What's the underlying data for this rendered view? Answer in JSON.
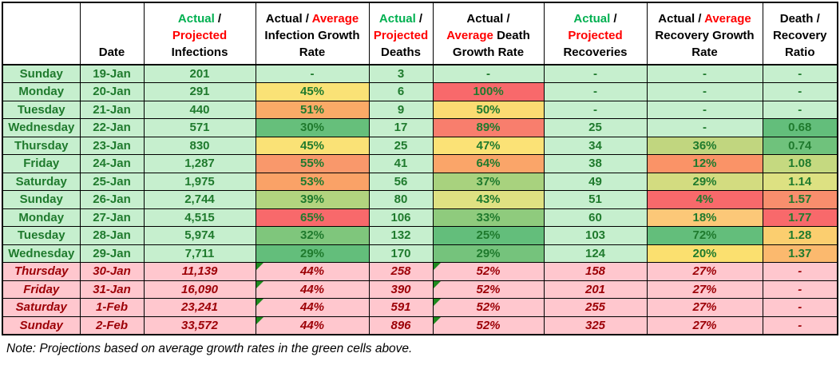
{
  "table": {
    "header_colors": {
      "green": "#00B050",
      "red": "#FF0000",
      "black": "#000000"
    },
    "palette": {
      "actual_row_bg": "#C6EFCE",
      "actual_row_text": "#1F7A2D",
      "projected_row_bg": "#FFC7CE",
      "projected_row_text": "#9C0006",
      "scale_red": "#F8696B",
      "scale_yellow": "#FFEB84",
      "scale_green": "#63BE7B",
      "formula_flag_green": "#1E8A1E"
    },
    "headers": [
      {
        "name": "day",
        "lines": []
      },
      {
        "name": "date",
        "lines": [
          [
            {
              "t": "Date",
              "c": "black"
            }
          ]
        ]
      },
      {
        "name": "infections",
        "lines": [
          [
            {
              "t": "Actual",
              "c": "green"
            },
            {
              "t": " /",
              "c": "black"
            }
          ],
          [
            {
              "t": "Projected",
              "c": "red"
            }
          ],
          [
            {
              "t": "Infections",
              "c": "black"
            }
          ]
        ]
      },
      {
        "name": "infection-growth-rate",
        "lines": [
          [
            {
              "t": "Actual / ",
              "c": "black"
            },
            {
              "t": "Average",
              "c": "red"
            }
          ],
          [
            {
              "t": "Infection Growth",
              "c": "black"
            }
          ],
          [
            {
              "t": "Rate",
              "c": "black"
            }
          ]
        ]
      },
      {
        "name": "deaths",
        "lines": [
          [
            {
              "t": "Actual",
              "c": "green"
            },
            {
              "t": " /",
              "c": "black"
            }
          ],
          [
            {
              "t": "Projected",
              "c": "red"
            }
          ],
          [
            {
              "t": "Deaths",
              "c": "black"
            }
          ]
        ]
      },
      {
        "name": "death-growth-rate",
        "lines": [
          [
            {
              "t": "Actual /",
              "c": "black"
            }
          ],
          [
            {
              "t": "Average",
              "c": "red"
            },
            {
              "t": " Death",
              "c": "black"
            }
          ],
          [
            {
              "t": "Growth Rate",
              "c": "black"
            }
          ]
        ]
      },
      {
        "name": "recoveries",
        "lines": [
          [
            {
              "t": "Actual",
              "c": "green"
            },
            {
              "t": " /",
              "c": "black"
            }
          ],
          [
            {
              "t": "Projected",
              "c": "red"
            }
          ],
          [
            {
              "t": "Recoveries",
              "c": "black"
            }
          ]
        ]
      },
      {
        "name": "recovery-growth-rate",
        "lines": [
          [
            {
              "t": "Actual / ",
              "c": "black"
            },
            {
              "t": "Average",
              "c": "red"
            }
          ],
          [
            {
              "t": "Recovery Growth",
              "c": "black"
            }
          ],
          [
            {
              "t": "Rate",
              "c": "black"
            }
          ]
        ]
      },
      {
        "name": "death-recovery-ratio",
        "lines": [
          [
            {
              "t": "Death /",
              "c": "black"
            }
          ],
          [
            {
              "t": "Recovery",
              "c": "black"
            }
          ],
          [
            {
              "t": "Ratio",
              "c": "black"
            }
          ]
        ]
      }
    ],
    "rows": [
      {
        "style": "actual",
        "cells": [
          {
            "v": "Sunday"
          },
          {
            "v": "19-Jan"
          },
          {
            "v": "201"
          },
          {
            "v": "-"
          },
          {
            "v": "3"
          },
          {
            "v": "-"
          },
          {
            "v": "-"
          },
          {
            "v": "-"
          },
          {
            "v": "-"
          }
        ]
      },
      {
        "style": "actual",
        "cells": [
          {
            "v": "Monday"
          },
          {
            "v": "20-Jan"
          },
          {
            "v": "291"
          },
          {
            "v": "45%",
            "bg": "#FAE276"
          },
          {
            "v": "6"
          },
          {
            "v": "100%",
            "bg": "#F8696B"
          },
          {
            "v": "-"
          },
          {
            "v": "-"
          },
          {
            "v": "-"
          }
        ]
      },
      {
        "style": "actual",
        "cells": [
          {
            "v": "Tuesday"
          },
          {
            "v": "21-Jan"
          },
          {
            "v": "440"
          },
          {
            "v": "51%",
            "bg": "#FAAA67"
          },
          {
            "v": "9"
          },
          {
            "v": "50%",
            "bg": "#FBDB72"
          },
          {
            "v": "-"
          },
          {
            "v": "-"
          },
          {
            "v": "-"
          }
        ]
      },
      {
        "style": "actual",
        "cells": [
          {
            "v": "Wednesday"
          },
          {
            "v": "22-Jan"
          },
          {
            "v": "571"
          },
          {
            "v": "30%",
            "bg": "#66BF7B"
          },
          {
            "v": "17"
          },
          {
            "v": "89%",
            "bg": "#F87E6D"
          },
          {
            "v": "25"
          },
          {
            "v": "-"
          },
          {
            "v": "0.68",
            "bg": "#63BE7B"
          }
        ]
      },
      {
        "style": "actual",
        "cells": [
          {
            "v": "Thursday"
          },
          {
            "v": "23-Jan"
          },
          {
            "v": "830"
          },
          {
            "v": "45%",
            "bg": "#FAE276"
          },
          {
            "v": "25"
          },
          {
            "v": "47%",
            "bg": "#FBE276"
          },
          {
            "v": "34"
          },
          {
            "v": "36%",
            "bg": "#C1D67F"
          },
          {
            "v": "0.74",
            "bg": "#6FC27C"
          }
        ]
      },
      {
        "style": "actual",
        "cells": [
          {
            "v": "Friday"
          },
          {
            "v": "24-Jan"
          },
          {
            "v": "1,287"
          },
          {
            "v": "55%",
            "bg": "#F9986B"
          },
          {
            "v": "41"
          },
          {
            "v": "64%",
            "bg": "#FAA569"
          },
          {
            "v": "38"
          },
          {
            "v": "12%",
            "bg": "#FA9367"
          },
          {
            "v": "1.08",
            "bg": "#C5D980"
          }
        ]
      },
      {
        "style": "actual",
        "cells": [
          {
            "v": "Saturday"
          },
          {
            "v": "25-Jan"
          },
          {
            "v": "1,975"
          },
          {
            "v": "53%",
            "bg": "#FAA267"
          },
          {
            "v": "56"
          },
          {
            "v": "37%",
            "bg": "#A8D27E"
          },
          {
            "v": "49"
          },
          {
            "v": "29%",
            "bg": "#D3DC80"
          },
          {
            "v": "1.14",
            "bg": "#DDE182"
          }
        ]
      },
      {
        "style": "actual",
        "cells": [
          {
            "v": "Sunday"
          },
          {
            "v": "26-Jan"
          },
          {
            "v": "2,744"
          },
          {
            "v": "39%",
            "bg": "#B2D47F"
          },
          {
            "v": "80"
          },
          {
            "v": "43%",
            "bg": "#DFE182"
          },
          {
            "v": "51"
          },
          {
            "v": "4%",
            "bg": "#F8696B"
          },
          {
            "v": "1.57",
            "bg": "#F88E6D"
          }
        ]
      },
      {
        "style": "actual",
        "cells": [
          {
            "v": "Monday"
          },
          {
            "v": "27-Jan"
          },
          {
            "v": "4,515"
          },
          {
            "v": "65%",
            "bg": "#F8696B"
          },
          {
            "v": "106"
          },
          {
            "v": "33%",
            "bg": "#8FCB7D"
          },
          {
            "v": "60"
          },
          {
            "v": "18%",
            "bg": "#FCC878"
          },
          {
            "v": "1.77",
            "bg": "#F8696B"
          }
        ]
      },
      {
        "style": "actual",
        "cells": [
          {
            "v": "Tuesday"
          },
          {
            "v": "28-Jan"
          },
          {
            "v": "5,974"
          },
          {
            "v": "32%",
            "bg": "#7FC67C"
          },
          {
            "v": "132"
          },
          {
            "v": "25%",
            "bg": "#63BE7B"
          },
          {
            "v": "103"
          },
          {
            "v": "72%",
            "bg": "#63BE7B"
          },
          {
            "v": "1.28",
            "bg": "#FBCE6F"
          }
        ]
      },
      {
        "style": "actual",
        "cells": [
          {
            "v": "Wednesday"
          },
          {
            "v": "29-Jan"
          },
          {
            "v": "7,711"
          },
          {
            "v": "29%",
            "bg": "#63BE7B"
          },
          {
            "v": "170"
          },
          {
            "v": "29%",
            "bg": "#75C37C"
          },
          {
            "v": "124"
          },
          {
            "v": "20%",
            "bg": "#FBE06F"
          },
          {
            "v": "1.37",
            "bg": "#FBB96E"
          }
        ]
      },
      {
        "style": "projected",
        "cells": [
          {
            "v": "Thursday"
          },
          {
            "v": "30-Jan"
          },
          {
            "v": "11,139"
          },
          {
            "v": "44%",
            "tri": true
          },
          {
            "v": "258"
          },
          {
            "v": "52%",
            "tri": true
          },
          {
            "v": "158"
          },
          {
            "v": "27%"
          },
          {
            "v": "-"
          }
        ]
      },
      {
        "style": "projected",
        "cells": [
          {
            "v": "Friday"
          },
          {
            "v": "31-Jan"
          },
          {
            "v": "16,090"
          },
          {
            "v": "44%",
            "tri": true
          },
          {
            "v": "390"
          },
          {
            "v": "52%",
            "tri": true
          },
          {
            "v": "201"
          },
          {
            "v": "27%"
          },
          {
            "v": "-"
          }
        ]
      },
      {
        "style": "projected",
        "cells": [
          {
            "v": "Saturday"
          },
          {
            "v": "1-Feb"
          },
          {
            "v": "23,241"
          },
          {
            "v": "44%",
            "tri": true
          },
          {
            "v": "591"
          },
          {
            "v": "52%",
            "tri": true
          },
          {
            "v": "255"
          },
          {
            "v": "27%"
          },
          {
            "v": "-"
          }
        ]
      },
      {
        "style": "projected",
        "cells": [
          {
            "v": "Sunday"
          },
          {
            "v": "2-Feb"
          },
          {
            "v": "33,572"
          },
          {
            "v": "44%",
            "tri": true
          },
          {
            "v": "896"
          },
          {
            "v": "52%",
            "tri": true
          },
          {
            "v": "325"
          },
          {
            "v": "27%"
          },
          {
            "v": "-"
          }
        ]
      }
    ]
  },
  "note": {
    "text": "Note: Projections based on average growth rates in the green cells above."
  }
}
